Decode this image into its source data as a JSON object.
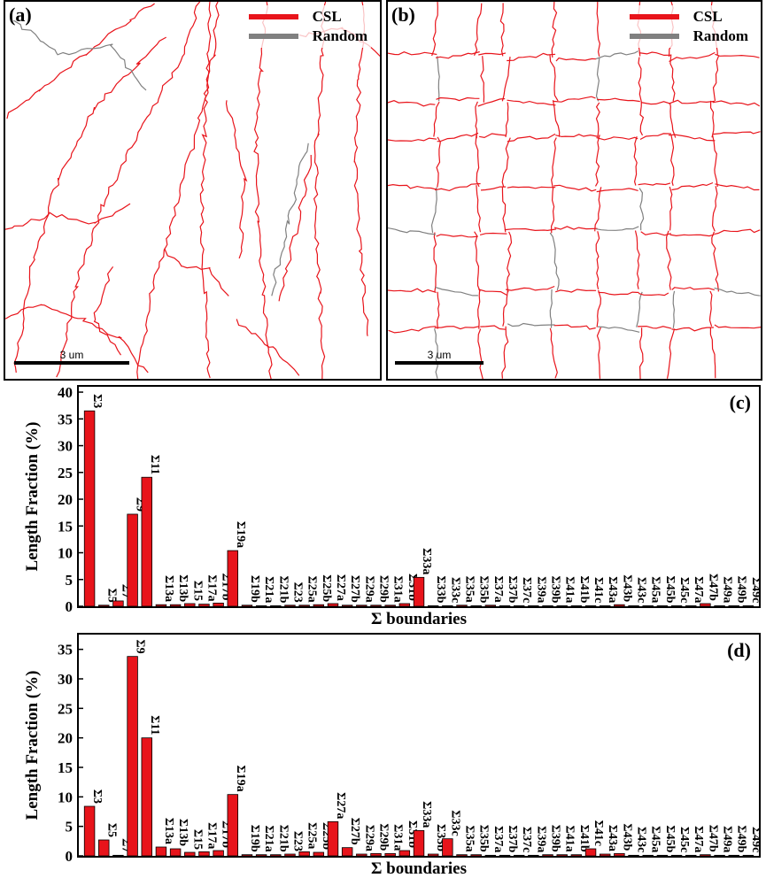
{
  "maps": [
    {
      "panel_label": "(a)",
      "legend": [
        {
          "label": "CSL",
          "color": "#e8141b"
        },
        {
          "label": "Random",
          "color": "#808080"
        }
      ],
      "scale_bar_label": "3 um"
    },
    {
      "panel_label": "(b)",
      "legend": [
        {
          "label": "CSL",
          "color": "#e8141b"
        },
        {
          "label": "Random",
          "color": "#808080"
        }
      ],
      "scale_bar_label": "3 um"
    }
  ],
  "chart_data": [
    {
      "type": "bar",
      "panel_label": "(c)",
      "xlabel": "Σ boundaries",
      "ylabel": "Length Fraction (%)",
      "ylim": [
        0,
        41
      ],
      "yticks": [
        0,
        5,
        10,
        15,
        20,
        25,
        30,
        35,
        40
      ],
      "bar_color": "#e8141b",
      "categories": [
        "Σ3",
        "Σ5",
        "Σ7",
        "Σ9",
        "Σ11",
        "Σ13a",
        "Σ13b",
        "Σ15",
        "Σ17a",
        "Σ17b",
        "Σ19a",
        "Σ19b",
        "Σ21a",
        "Σ21b",
        "Σ23",
        "Σ25a",
        "Σ25b",
        "Σ27a",
        "Σ27b",
        "Σ29a",
        "Σ29b",
        "Σ31a",
        "Σ31b",
        "Σ33a",
        "Σ33b",
        "Σ33c",
        "Σ35a",
        "Σ35b",
        "Σ37a",
        "Σ37b",
        "Σ37c",
        "Σ39a",
        "Σ39b",
        "Σ41a",
        "Σ41b",
        "Σ41c",
        "Σ43a",
        "Σ43b",
        "Σ43c",
        "Σ45a",
        "Σ45b",
        "Σ45c",
        "Σ47a",
        "Σ47b",
        "Σ49a",
        "Σ49b",
        "Σ49c"
      ],
      "values": [
        36.5,
        0.2,
        1.0,
        17.2,
        24.1,
        0.3,
        0.3,
        0.5,
        0.4,
        0.6,
        10.4,
        0.2,
        0.1,
        0.1,
        0.2,
        0.2,
        0.3,
        0.5,
        0.2,
        0.2,
        0.2,
        0.2,
        0.5,
        5.4,
        0.1,
        0.1,
        0.2,
        0.1,
        0.2,
        0.1,
        0.1,
        0.1,
        0.1,
        0.1,
        0.1,
        0.1,
        0.1,
        0.3,
        0.1,
        0.1,
        0.1,
        0.1,
        0.1,
        0.5,
        0.1,
        0.1,
        0.1
      ]
    },
    {
      "type": "bar",
      "panel_label": "(d)",
      "xlabel": "Σ boundaries",
      "ylabel": "Length Fraction (%)",
      "ylim": [
        0,
        37.5
      ],
      "yticks": [
        0,
        5,
        10,
        15,
        20,
        25,
        30,
        35
      ],
      "bar_color": "#e8141b",
      "categories": [
        "Σ3",
        "Σ5",
        "Σ7",
        "Σ9",
        "Σ11",
        "Σ13a",
        "Σ13b",
        "Σ15",
        "Σ17a",
        "Σ17b",
        "Σ19a",
        "Σ19b",
        "Σ21a",
        "Σ21b",
        "Σ23",
        "Σ25a",
        "Σ25b",
        "Σ27a",
        "Σ27b",
        "Σ29a",
        "Σ29b",
        "Σ31a",
        "Σ31b",
        "Σ33a",
        "Σ33b",
        "Σ33c",
        "Σ35a",
        "Σ35b",
        "Σ37a",
        "Σ37b",
        "Σ37c",
        "Σ39a",
        "Σ39b",
        "Σ41a",
        "Σ41b",
        "Σ41c",
        "Σ43a",
        "Σ43b",
        "Σ43c",
        "Σ45a",
        "Σ45b",
        "Σ45c",
        "Σ47a",
        "Σ47b",
        "Σ49a",
        "Σ49b",
        "Σ49c"
      ],
      "values": [
        8.4,
        2.7,
        0.1,
        33.8,
        20.0,
        1.5,
        1.2,
        0.6,
        0.7,
        0.9,
        10.4,
        0.2,
        0.2,
        0.2,
        0.3,
        0.7,
        0.6,
        5.8,
        1.4,
        0.3,
        0.4,
        0.4,
        0.9,
        4.3,
        0.3,
        2.9,
        0.2,
        0.2,
        0.1,
        0.1,
        0.1,
        0.1,
        0.2,
        0.2,
        0.2,
        1.2,
        0.3,
        0.4,
        0.1,
        0.1,
        0.1,
        0.1,
        0.1,
        0.2,
        0.1,
        0.1,
        0.1
      ]
    }
  ]
}
